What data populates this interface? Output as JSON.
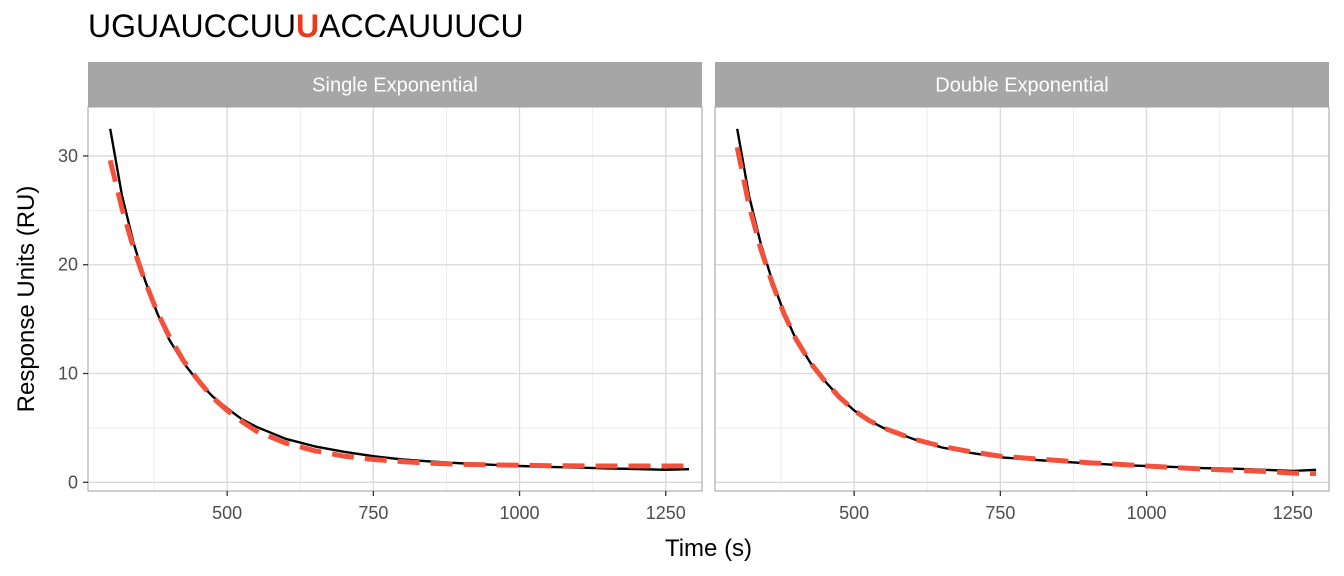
{
  "title": {
    "before": "UGUAUCCUU",
    "highlight": "U",
    "after": "ACCAUUUCU",
    "highlight_color": "#e8391c"
  },
  "colors": {
    "strip_bg": "#a6a6a6",
    "observed": "#000000",
    "fit": "#f4513c",
    "grid_major": "#d9d9d9",
    "grid_minor": "#ededed",
    "panel_border": "#b3b3b3"
  },
  "chart_data": {
    "type": "line",
    "xlabel": "Time (s)",
    "ylabel": "Response Units (RU)",
    "x_range": [
      262,
      1312
    ],
    "y_range": [
      -0.8,
      34.5
    ],
    "x_ticks": [
      500,
      750,
      1000,
      1250
    ],
    "x_tick_labels": [
      "500",
      "750",
      "1000",
      "1250"
    ],
    "y_ticks": [
      0,
      10,
      20,
      30
    ],
    "y_tick_labels": [
      "0",
      "10",
      "20",
      "30"
    ],
    "grid": true,
    "legend": "none",
    "panels": [
      {
        "label": "Single Exponential",
        "series": [
          {
            "style": "solid",
            "x": [
              300,
              320,
              340,
              360,
              380,
              400,
              425,
              450,
              475,
              500,
              525,
              550,
              600,
              650,
              700,
              750,
              800,
              850,
              900,
              950,
              1000,
              1050,
              1100,
              1150,
              1200,
              1250,
              1290
            ],
            "y": [
              32.5,
              26.4,
              22.0,
              18.5,
              15.6,
              13.2,
              11.0,
              9.3,
              7.9,
              6.8,
              5.8,
              5.1,
              4.0,
              3.3,
              2.8,
              2.4,
              2.1,
              1.9,
              1.75,
              1.62,
              1.5,
              1.42,
              1.35,
              1.28,
              1.22,
              1.15,
              1.2
            ]
          },
          {
            "style": "dashed",
            "x": [
              300,
              320,
              340,
              360,
              380,
              400,
              425,
              450,
              475,
              500,
              525,
              550,
              600,
              650,
              700,
              750,
              800,
              850,
              900,
              950,
              1000,
              1050,
              1100,
              1150,
              1200,
              1250,
              1290
            ],
            "y": [
              29.6,
              25.2,
              21.5,
              18.4,
              15.7,
              13.5,
              11.2,
              9.4,
              7.8,
              6.6,
              5.6,
              4.7,
              3.6,
              2.9,
              2.4,
              2.1,
              1.9,
              1.75,
              1.65,
              1.6,
              1.56,
              1.53,
              1.51,
              1.5,
              1.5,
              1.5,
              1.5
            ]
          }
        ]
      },
      {
        "label": "Double Exponential",
        "series": [
          {
            "style": "solid",
            "x": [
              300,
              320,
              340,
              360,
              380,
              400,
              425,
              450,
              475,
              500,
              525,
              550,
              600,
              650,
              700,
              750,
              800,
              850,
              900,
              950,
              1000,
              1050,
              1100,
              1150,
              1200,
              1250,
              1290
            ],
            "y": [
              32.5,
              26.4,
              22.0,
              18.5,
              15.6,
              13.2,
              11.0,
              9.3,
              7.8,
              6.6,
              5.7,
              5.0,
              4.0,
              3.2,
              2.7,
              2.3,
              2.1,
              1.9,
              1.75,
              1.6,
              1.5,
              1.4,
              1.3,
              1.25,
              1.15,
              1.05,
              1.15
            ]
          },
          {
            "style": "dashed",
            "x": [
              300,
              320,
              340,
              360,
              380,
              400,
              425,
              450,
              475,
              500,
              525,
              550,
              600,
              650,
              700,
              750,
              800,
              850,
              900,
              950,
              1000,
              1050,
              1100,
              1150,
              1200,
              1250,
              1290
            ],
            "y": [
              30.8,
              25.5,
              21.5,
              18.3,
              15.5,
              13.2,
              11.0,
              9.3,
              7.8,
              6.6,
              5.7,
              5.0,
              4.0,
              3.3,
              2.8,
              2.4,
              2.2,
              2.0,
              1.8,
              1.65,
              1.5,
              1.35,
              1.2,
              1.1,
              1.0,
              0.85,
              0.8
            ]
          }
        ]
      }
    ]
  }
}
